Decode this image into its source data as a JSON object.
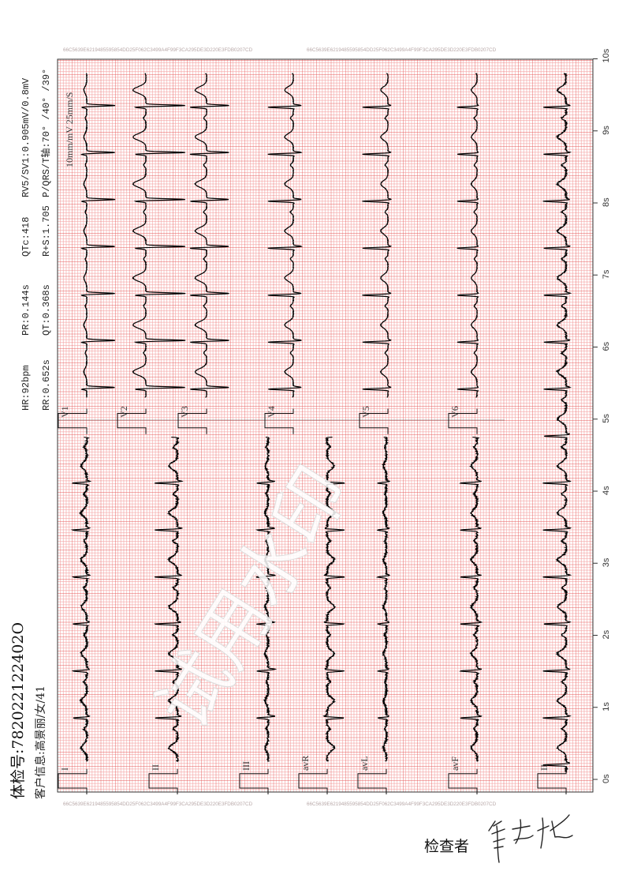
{
  "watermark_hash": "66C5639E6219485595854DD25F062C3499A4F99F3CA295DE3D220E3FDB0207CD",
  "measurements": {
    "hr": "HR:92bpm",
    "pr": "PR:0.144s",
    "qtc": "QTc:418",
    "rv5_sv1": "RV5/SV1:0.905mV/0.8mV",
    "rr": "RR:0.652s",
    "qt": "QT:0.368s",
    "r_plus_s": "R+S:1.705",
    "axis": "P/QRS/T轴:70° /40° /39°"
  },
  "calibration": "10mm/mV 25mm/S",
  "patient": {
    "exam_id": "体检号:782022122402O",
    "customer_info": "客户信息:高景丽/女/41"
  },
  "leads_lower": [
    "I",
    "II",
    "III",
    "avR",
    "avL",
    "avF"
  ],
  "leads_upper": [
    "V1",
    "V2",
    "V3",
    "V4",
    "V5",
    "V6"
  ],
  "rhythm_lead": "II",
  "time_ticks": [
    "0s",
    "1s",
    "2s",
    "3s",
    "4s",
    "5s",
    "6s",
    "7s",
    "8s",
    "9s",
    "10s"
  ],
  "watermark_text": "试用水印",
  "footer": {
    "examiner_label": "检查者",
    "signature": "张志梅"
  },
  "colors": {
    "grid_minor": "#f5a3a3",
    "grid_major": "#e65a5a",
    "trace": "#000000"
  }
}
